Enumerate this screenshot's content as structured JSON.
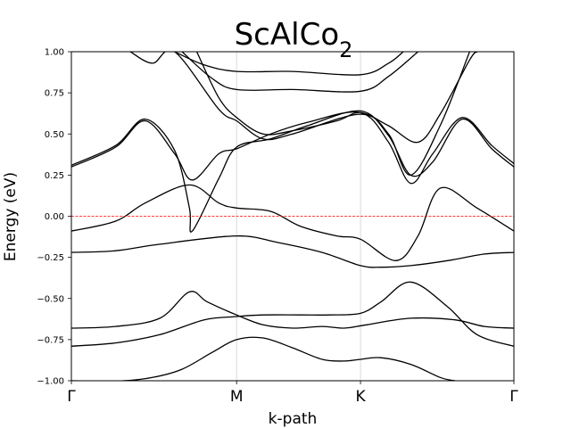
{
  "chart_data": {
    "type": "line",
    "title": "ScAlCo",
    "title_subscript": "2",
    "xlabel": "k-path",
    "ylabel": "Energy (eV)",
    "ylim": [
      -1.0,
      1.0
    ],
    "xlim": [
      0,
      3.0
    ],
    "y_ticks": [
      -1.0,
      -0.75,
      -0.5,
      -0.25,
      0.0,
      0.25,
      0.5,
      0.75,
      1.0
    ],
    "y_tick_labels": [
      "−1.00",
      "−0.75",
      "−0.50",
      "−0.25",
      "0.00",
      "0.25",
      "0.50",
      "0.75",
      "1.00"
    ],
    "high_symmetry_points": [
      {
        "label": "Γ",
        "x": 0
      },
      {
        "label": "M",
        "x": 1.12
      },
      {
        "label": "K",
        "x": 1.96
      },
      {
        "label": "Γ",
        "x": 3.0
      }
    ],
    "fermi_level": 0.0,
    "fermi_color": "#ff0000",
    "line_color": "#000000",
    "grid": "vertical lines at high-symmetry points",
    "series": [
      {
        "values": [
          [
            0,
            -1.0
          ],
          [
            0.35,
            -1.0
          ],
          [
            0.55,
            -0.98
          ],
          [
            0.75,
            -0.93
          ],
          [
            0.95,
            -0.83
          ],
          [
            1.12,
            -0.75
          ],
          [
            1.3,
            -0.74
          ],
          [
            1.5,
            -0.8
          ],
          [
            1.7,
            -0.87
          ],
          [
            1.85,
            -0.88
          ],
          [
            1.96,
            -0.87
          ],
          [
            2.1,
            -0.86
          ],
          [
            2.3,
            -0.9
          ],
          [
            2.5,
            -0.98
          ],
          [
            2.6,
            -1.0
          ]
        ]
      },
      {
        "values": [
          [
            0,
            -0.79
          ],
          [
            0.3,
            -0.77
          ],
          [
            0.6,
            -0.72
          ],
          [
            0.9,
            -0.63
          ],
          [
            1.12,
            -0.61
          ],
          [
            1.3,
            -0.6
          ],
          [
            1.55,
            -0.6
          ],
          [
            1.75,
            -0.6
          ],
          [
            1.96,
            -0.59
          ],
          [
            2.1,
            -0.52
          ],
          [
            2.3,
            -0.4
          ],
          [
            2.55,
            -0.55
          ],
          [
            2.75,
            -0.72
          ],
          [
            3.0,
            -0.79
          ]
        ]
      },
      {
        "values": [
          [
            0,
            -0.68
          ],
          [
            0.3,
            -0.67
          ],
          [
            0.6,
            -0.62
          ],
          [
            0.8,
            -0.46
          ],
          [
            0.92,
            -0.52
          ],
          [
            1.12,
            -0.6
          ],
          [
            1.3,
            -0.66
          ],
          [
            1.5,
            -0.68
          ],
          [
            1.7,
            -0.67
          ],
          [
            1.85,
            -0.68
          ],
          [
            2.0,
            -0.66
          ],
          [
            2.3,
            -0.62
          ],
          [
            2.6,
            -0.63
          ],
          [
            2.8,
            -0.67
          ],
          [
            3.0,
            -0.68
          ]
        ]
      },
      {
        "values": [
          [
            0,
            -0.22
          ],
          [
            0.3,
            -0.21
          ],
          [
            0.6,
            -0.17
          ],
          [
            1.12,
            -0.12
          ],
          [
            1.4,
            -0.16
          ],
          [
            1.7,
            -0.22
          ],
          [
            1.96,
            -0.3
          ],
          [
            2.1,
            -0.31
          ],
          [
            2.3,
            -0.3
          ],
          [
            2.55,
            -0.27
          ],
          [
            2.8,
            -0.23
          ],
          [
            3.0,
            -0.22
          ]
        ]
      },
      {
        "values": [
          [
            0,
            -0.09
          ],
          [
            0.3,
            -0.03
          ],
          [
            0.5,
            0.08
          ],
          [
            0.8,
            0.19
          ],
          [
            1.0,
            0.08
          ],
          [
            1.12,
            0.05
          ],
          [
            1.35,
            0.03
          ],
          [
            1.55,
            -0.06
          ],
          [
            1.8,
            -0.12
          ],
          [
            1.96,
            -0.14
          ],
          [
            2.2,
            -0.27
          ],
          [
            2.35,
            -0.12
          ],
          [
            2.5,
            0.17
          ],
          [
            2.75,
            0.05
          ],
          [
            3.0,
            -0.09
          ]
        ]
      },
      {
        "values": [
          [
            0,
            0.3
          ],
          [
            0.3,
            0.42
          ],
          [
            0.5,
            0.58
          ],
          [
            0.7,
            0.38
          ],
          [
            0.82,
            0.22
          ],
          [
            1.0,
            0.38
          ],
          [
            1.12,
            0.41
          ],
          [
            1.35,
            0.5
          ],
          [
            1.6,
            0.57
          ],
          [
            1.96,
            0.63
          ],
          [
            2.15,
            0.45
          ],
          [
            2.3,
            0.2
          ],
          [
            2.45,
            0.38
          ],
          [
            2.65,
            0.6
          ],
          [
            2.85,
            0.43
          ],
          [
            3.0,
            0.32
          ]
        ]
      },
      {
        "values": [
          [
            0,
            0.31
          ],
          [
            0.3,
            0.43
          ],
          [
            0.5,
            0.59
          ],
          [
            0.7,
            0.4
          ],
          [
            0.8,
            0.05
          ],
          [
            0.82,
            -0.09
          ],
          [
            1.0,
            0.23
          ],
          [
            1.12,
            0.42
          ],
          [
            1.35,
            0.47
          ],
          [
            1.6,
            0.55
          ],
          [
            1.96,
            0.64
          ],
          [
            2.15,
            0.49
          ],
          [
            2.3,
            0.25
          ],
          [
            2.45,
            0.33
          ],
          [
            2.65,
            0.59
          ],
          [
            2.85,
            0.41
          ],
          [
            3.0,
            0.3
          ]
        ]
      },
      {
        "values": [
          [
            0.4,
            1.0
          ],
          [
            0.55,
            0.93
          ],
          [
            0.7,
            1.0
          ],
          [
            1.0,
            0.65
          ],
          [
            1.12,
            0.58
          ],
          [
            1.3,
            0.47
          ],
          [
            1.5,
            0.5
          ],
          [
            1.96,
            0.62
          ],
          [
            2.15,
            0.5
          ],
          [
            2.3,
            0.25
          ],
          [
            2.5,
            0.55
          ],
          [
            2.7,
            1.0
          ]
        ]
      },
      {
        "values": [
          [
            0.75,
            1.0
          ],
          [
            0.95,
            0.84
          ],
          [
            1.12,
            0.77
          ],
          [
            1.5,
            0.77
          ],
          [
            1.96,
            0.76
          ],
          [
            2.15,
            0.85
          ],
          [
            2.35,
            1.0
          ]
        ]
      },
      {
        "values": [
          [
            0.7,
            1.0
          ],
          [
            0.9,
            0.92
          ],
          [
            1.12,
            0.88
          ],
          [
            1.5,
            0.88
          ],
          [
            1.96,
            0.86
          ],
          [
            2.15,
            0.93
          ],
          [
            2.25,
            1.0
          ]
        ]
      },
      {
        "values": [
          [
            0.85,
            1.0
          ],
          [
            1.0,
            0.72
          ],
          [
            1.12,
            0.6
          ],
          [
            1.3,
            0.5
          ],
          [
            1.5,
            0.52
          ],
          [
            1.8,
            0.58
          ],
          [
            1.96,
            0.63
          ],
          [
            2.15,
            0.55
          ],
          [
            2.35,
            0.45
          ],
          [
            2.5,
            0.62
          ],
          [
            2.7,
            0.95
          ],
          [
            2.75,
            1.0
          ]
        ]
      }
    ]
  }
}
